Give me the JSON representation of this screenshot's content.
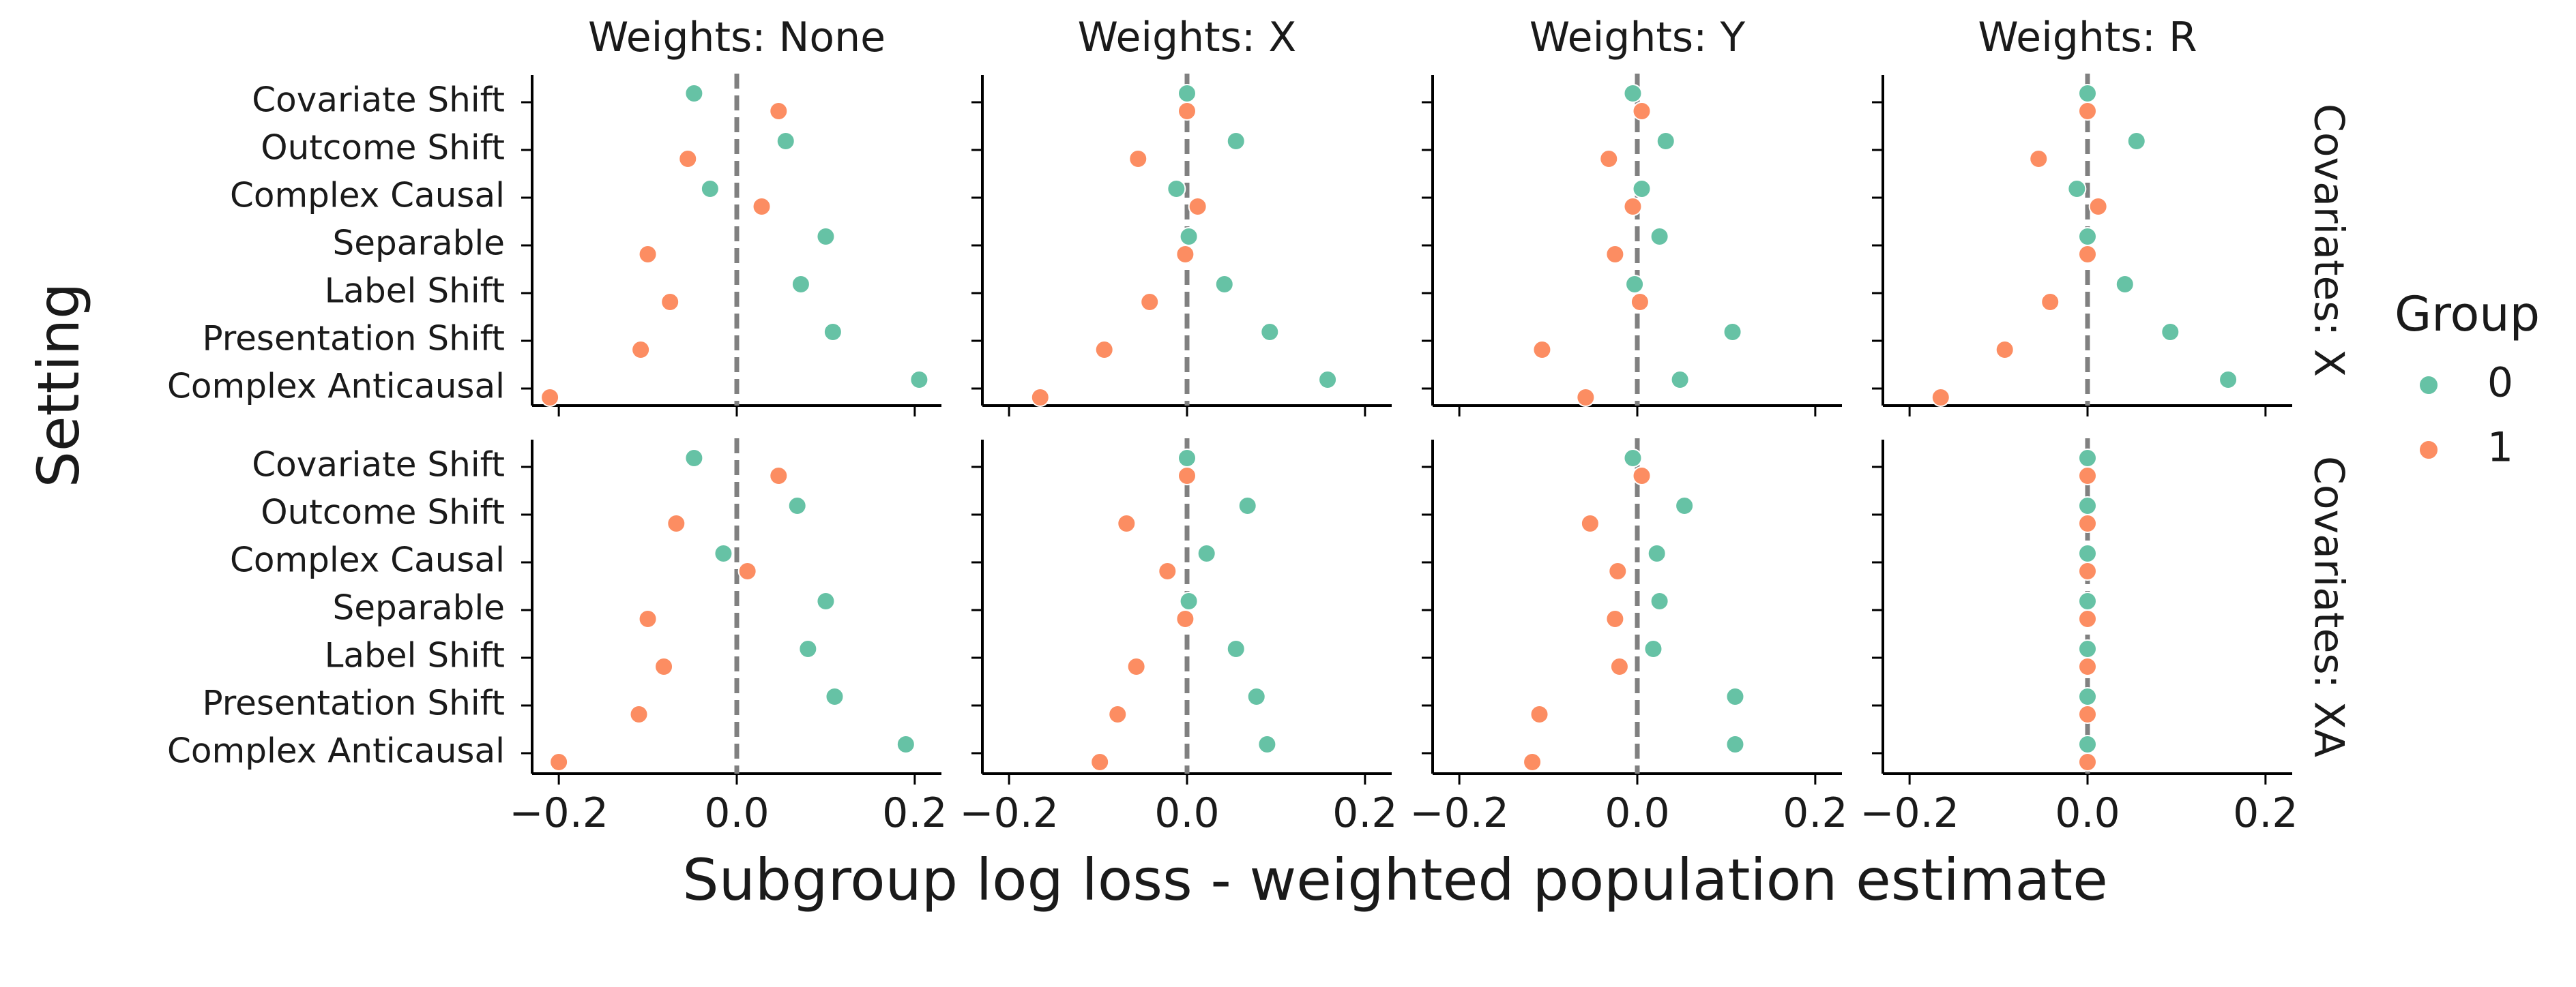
{
  "chart_data": {
    "type": "scatter",
    "xlabel": "Subgroup log loss - weighted population estimate",
    "ylabel": "Setting",
    "xlim": [
      -0.23,
      0.23
    ],
    "xticks": [
      -0.2,
      0.0,
      0.2
    ],
    "xtick_labels": [
      "−0.2",
      "0.0",
      "0.2"
    ],
    "categories": [
      "Covariate Shift",
      "Outcome Shift",
      "Complex Causal",
      "Separable",
      "Label Shift",
      "Presentation Shift",
      "Complex Anticausal"
    ],
    "columns": [
      "Weights: None",
      "Weights: X",
      "Weights: Y",
      "Weights: R"
    ],
    "rows": [
      "Covariates: X",
      "Covariates: XA"
    ],
    "reference_line": 0.0,
    "legend": {
      "title": "Group",
      "position": "right",
      "entries": [
        {
          "label": "0",
          "color": "#66c2a5"
        },
        {
          "label": "1",
          "color": "#fc8d62"
        }
      ]
    },
    "panels": [
      {
        "row": 0,
        "col": 0,
        "series": [
          {
            "name": "0",
            "values": [
              -0.048,
              0.055,
              -0.03,
              0.1,
              0.072,
              0.108,
              0.205
            ]
          },
          {
            "name": "1",
            "values": [
              0.047,
              -0.055,
              0.028,
              -0.1,
              -0.075,
              -0.108,
              -0.21
            ]
          }
        ]
      },
      {
        "row": 0,
        "col": 1,
        "series": [
          {
            "name": "0",
            "values": [
              0.0,
              0.055,
              -0.012,
              0.002,
              0.042,
              0.093,
              0.158
            ]
          },
          {
            "name": "1",
            "values": [
              0.0,
              -0.055,
              0.012,
              -0.002,
              -0.042,
              -0.093,
              -0.165
            ]
          }
        ]
      },
      {
        "row": 0,
        "col": 2,
        "series": [
          {
            "name": "0",
            "values": [
              -0.005,
              0.032,
              0.005,
              0.025,
              -0.003,
              0.107,
              0.048
            ]
          },
          {
            "name": "1",
            "values": [
              0.005,
              -0.032,
              -0.005,
              -0.025,
              0.003,
              -0.107,
              -0.058
            ]
          }
        ]
      },
      {
        "row": 0,
        "col": 3,
        "series": [
          {
            "name": "0",
            "values": [
              0.0,
              0.055,
              -0.012,
              0.0,
              0.042,
              0.093,
              0.158
            ]
          },
          {
            "name": "1",
            "values": [
              0.0,
              -0.055,
              0.012,
              0.0,
              -0.042,
              -0.093,
              -0.165
            ]
          }
        ]
      },
      {
        "row": 1,
        "col": 0,
        "series": [
          {
            "name": "0",
            "values": [
              -0.048,
              0.068,
              -0.015,
              0.1,
              0.08,
              0.11,
              0.19
            ]
          },
          {
            "name": "1",
            "values": [
              0.047,
              -0.068,
              0.012,
              -0.1,
              -0.082,
              -0.11,
              -0.2
            ]
          }
        ]
      },
      {
        "row": 1,
        "col": 1,
        "series": [
          {
            "name": "0",
            "values": [
              0.0,
              0.068,
              0.022,
              0.002,
              0.055,
              0.078,
              0.09
            ]
          },
          {
            "name": "1",
            "values": [
              0.0,
              -0.068,
              -0.022,
              -0.002,
              -0.057,
              -0.078,
              -0.098
            ]
          }
        ]
      },
      {
        "row": 1,
        "col": 2,
        "series": [
          {
            "name": "0",
            "values": [
              -0.005,
              0.053,
              0.022,
              0.025,
              0.018,
              0.11,
              0.11
            ]
          },
          {
            "name": "1",
            "values": [
              0.005,
              -0.053,
              -0.022,
              -0.025,
              -0.02,
              -0.11,
              -0.118
            ]
          }
        ]
      },
      {
        "row": 1,
        "col": 3,
        "series": [
          {
            "name": "0",
            "values": [
              0.0,
              0.0,
              0.0,
              0.0,
              0.0,
              0.0,
              0.0
            ]
          },
          {
            "name": "1",
            "values": [
              0.0,
              0.0,
              0.0,
              0.0,
              0.0,
              0.0,
              0.0
            ]
          }
        ]
      }
    ]
  }
}
